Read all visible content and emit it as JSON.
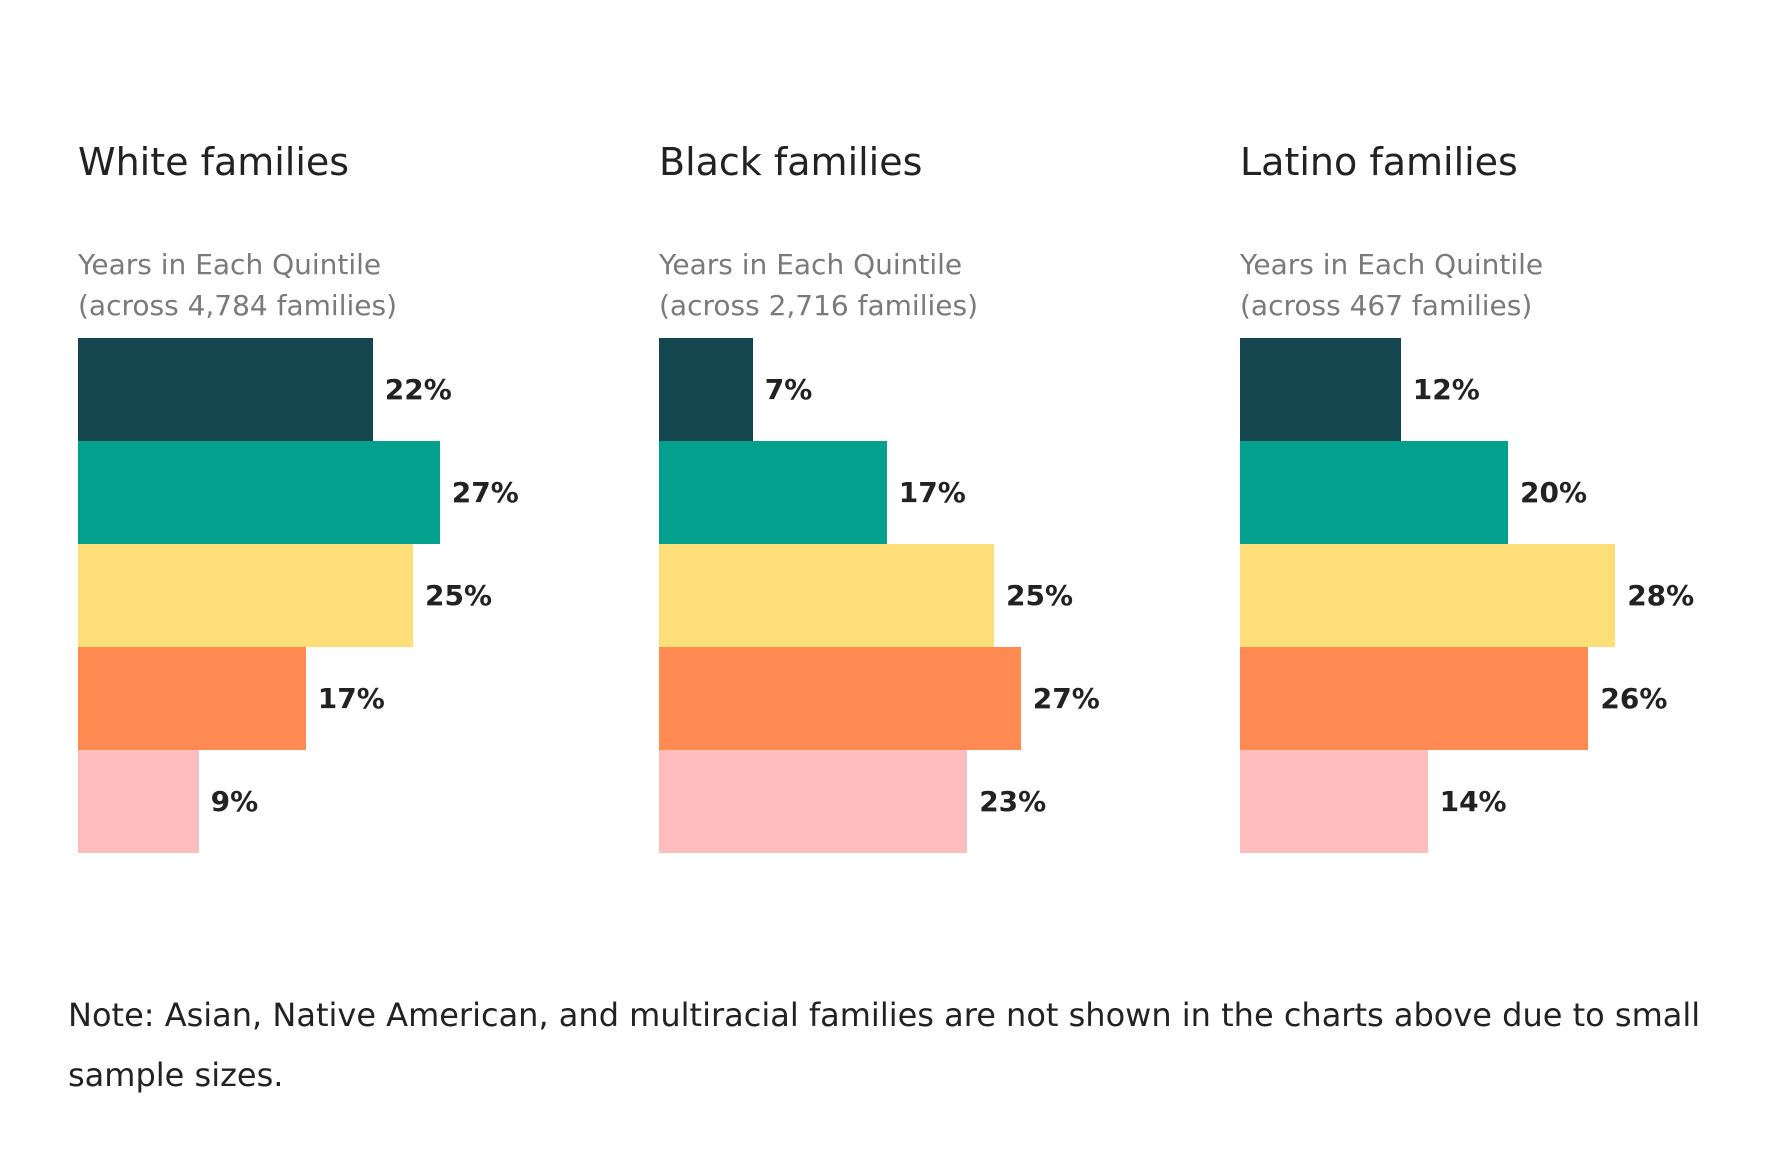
{
  "colors": {
    "quintile_1": "#14464f",
    "quintile_2": "#03a08d",
    "quintile_3": "#fede78",
    "quintile_4": "#ff8a52",
    "quintile_5": "#ffbdbe"
  },
  "chart_data": [
    {
      "type": "bar",
      "orientation": "horizontal",
      "title": "White families",
      "subtitle_line1": "Years in Each Quintile",
      "subtitle_line2": "(across 4,784 families)",
      "xlim": [
        0,
        30
      ],
      "values": [
        22,
        27,
        25,
        17,
        9
      ],
      "labels": [
        "22%",
        "27%",
        "25%",
        "17%",
        "9%"
      ]
    },
    {
      "type": "bar",
      "orientation": "horizontal",
      "title": "Black families",
      "subtitle_line1": "Years in Each Quintile",
      "subtitle_line2": "(across 2,716 families)",
      "xlim": [
        0,
        30
      ],
      "values": [
        7,
        17,
        25,
        27,
        23
      ],
      "labels": [
        "7%",
        "17%",
        "25%",
        "27%",
        "23%"
      ]
    },
    {
      "type": "bar",
      "orientation": "horizontal",
      "title": "Latino families",
      "subtitle_line1": "Years in Each Quintile",
      "subtitle_line2": "(across 467 families)",
      "xlim": [
        0,
        30
      ],
      "values": [
        12,
        20,
        28,
        26,
        14
      ],
      "labels": [
        "12%",
        "20%",
        "28%",
        "26%",
        "14%"
      ]
    }
  ],
  "note": "Note: Asian, Native American, and multiracial families are not shown in the charts above due to small sample sizes."
}
